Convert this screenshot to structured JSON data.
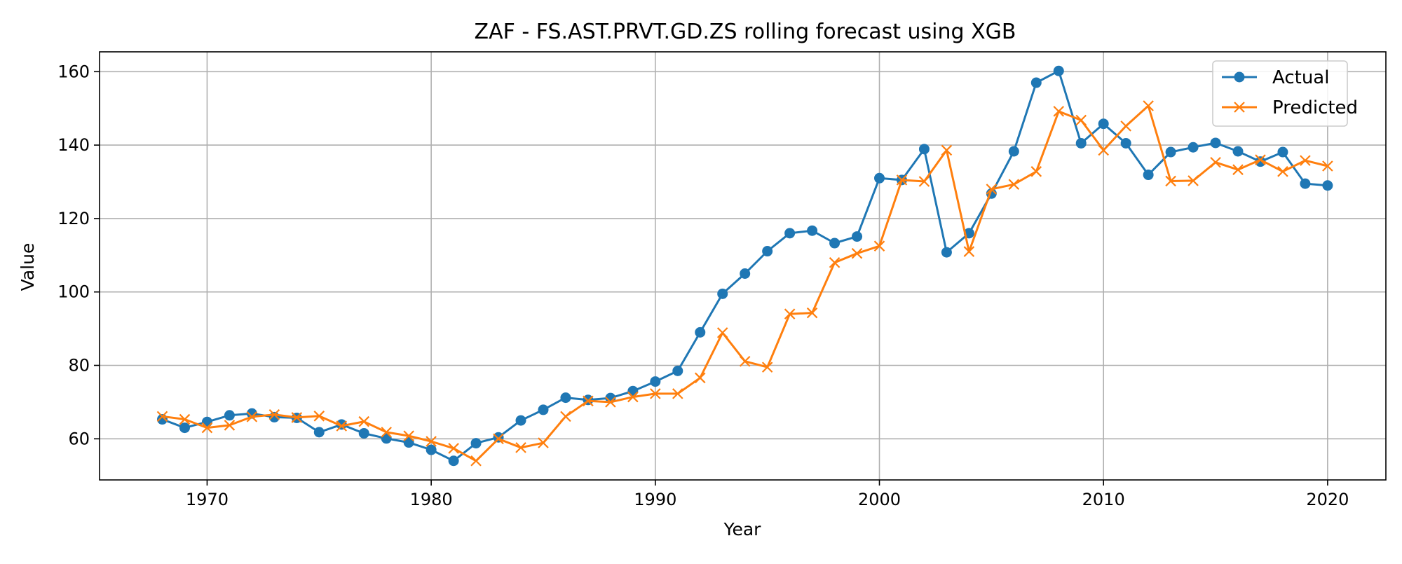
{
  "chart_data": {
    "type": "line",
    "title": "ZAF - FS.AST.PRVT.GD.ZS rolling forecast using XGB",
    "xlabel": "Year",
    "ylabel": "Value",
    "xlim": [
      1965.2,
      2022.6
    ],
    "ylim": [
      48.8,
      165.4
    ],
    "xticks": [
      1970,
      1980,
      1990,
      2000,
      2010,
      2020
    ],
    "yticks": [
      60,
      80,
      100,
      120,
      140,
      160
    ],
    "grid": true,
    "legend_position": "top-right",
    "x": [
      1968,
      1969,
      1970,
      1971,
      1972,
      1973,
      1974,
      1975,
      1976,
      1977,
      1978,
      1979,
      1980,
      1981,
      1982,
      1983,
      1984,
      1985,
      1986,
      1987,
      1988,
      1989,
      1990,
      1991,
      1992,
      1993,
      1994,
      1995,
      1996,
      1997,
      1998,
      1999,
      2000,
      2001,
      2002,
      2003,
      2004,
      2005,
      2006,
      2007,
      2008,
      2009,
      2010,
      2011,
      2012,
      2013,
      2014,
      2015,
      2016,
      2017,
      2018,
      2019,
      2020
    ],
    "series": [
      {
        "name": "Actual",
        "color": "#1f77b4",
        "marker": "circle",
        "values": [
          65.3,
          63.0,
          64.6,
          66.4,
          66.9,
          65.9,
          65.7,
          61.8,
          63.9,
          61.5,
          60.1,
          59.0,
          57.0,
          54.0,
          58.8,
          60.4,
          65.0,
          67.9,
          71.2,
          70.6,
          71.1,
          73.0,
          75.6,
          78.5,
          89.0,
          99.5,
          105.0,
          111.1,
          116.0,
          116.7,
          113.3,
          115.1,
          131.0,
          130.5,
          138.9,
          110.8,
          116.0,
          126.8,
          138.3,
          157.0,
          160.2,
          140.5,
          145.8,
          140.5,
          131.9,
          138.1,
          139.4,
          140.6,
          138.3,
          135.5,
          138.1,
          129.5,
          129.0
        ]
      },
      {
        "name": "Predicted",
        "color": "#ff7f0e",
        "marker": "x",
        "values": [
          66.1,
          65.3,
          63.0,
          63.7,
          66.0,
          66.6,
          65.8,
          66.2,
          63.5,
          64.7,
          61.8,
          60.8,
          59.3,
          57.4,
          54.0,
          60.0,
          57.6,
          58.9,
          66.1,
          70.3,
          70.0,
          71.4,
          72.3,
          72.3,
          76.6,
          88.9,
          81.1,
          79.5,
          94.0,
          94.3,
          108.0,
          110.5,
          112.5,
          130.5,
          130.1,
          138.6,
          111.0,
          128.0,
          129.3,
          132.8,
          149.2,
          146.8,
          138.6,
          145.2,
          150.7,
          130.2,
          130.3,
          135.3,
          133.3,
          136.0,
          132.8,
          135.8,
          134.3
        ]
      }
    ]
  }
}
